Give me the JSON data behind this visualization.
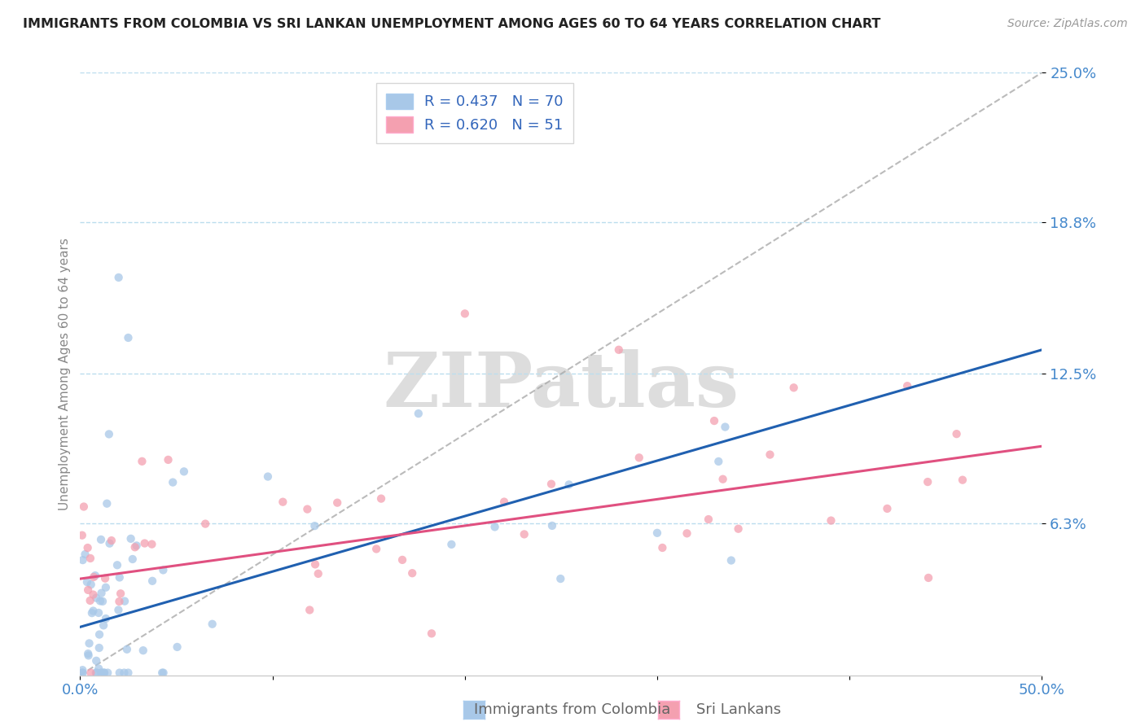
{
  "title": "IMMIGRANTS FROM COLOMBIA VS SRI LANKAN UNEMPLOYMENT AMONG AGES 60 TO 64 YEARS CORRELATION CHART",
  "source": "Source: ZipAtlas.com",
  "ylabel": "Unemployment Among Ages 60 to 64 years",
  "legend1_label": "Immigrants from Colombia",
  "legend2_label": "Sri Lankans",
  "R1": 0.437,
  "N1": 70,
  "R2": 0.62,
  "N2": 51,
  "color1": "#a8c8e8",
  "color2": "#f4a0b0",
  "trend1_color": "#2060b0",
  "trend2_color": "#e05080",
  "xlim": [
    0.0,
    0.5
  ],
  "ylim": [
    0.0,
    0.25
  ],
  "watermark": "ZIPatlas"
}
